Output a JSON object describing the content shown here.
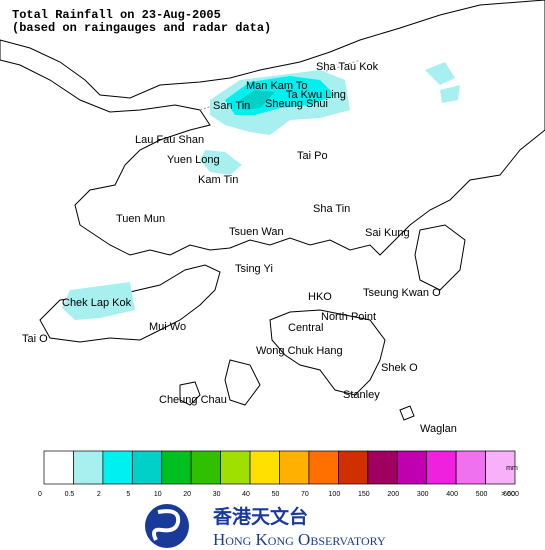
{
  "header": {
    "title": "Total Rainfall on 23-Aug-2005",
    "subtitle": "(based on raingauges and radar data)"
  },
  "places": [
    "Sha Tau Kok",
    "Man Kam To",
    "Ta Kwu Ling",
    "San Tin",
    "Sheung Shui",
    "Lau Fau Shan",
    "Yuen Long",
    "Tai Po",
    "Kam Tin",
    "Sha Tin",
    "Tuen Mun",
    "Tsuen Wan",
    "Sai Kung",
    "Tsing Yi",
    "Tseung Kwan O",
    "HKO",
    "Chek Lap Kok",
    "North Point",
    "Mui Wo",
    "Central",
    "Tai O",
    "Wong Chuk Hang",
    "Shek O",
    "Stanley",
    "Cheung Chau",
    "Waglan"
  ],
  "legend": {
    "unit": "mm",
    "colors": [
      "#ffffff",
      "#a8f0f0",
      "#00f0f0",
      "#00d0c8",
      "#00c020",
      "#30c000",
      "#a0e000",
      "#ffe000",
      "#ffb000",
      "#ff7000",
      "#d03000",
      "#a00060",
      "#c000b0",
      "#f020e0",
      "#f070f0",
      "#f8b0f8"
    ],
    "labels": [
      "0",
      "0.5",
      "2",
      "5",
      "10",
      "20",
      "30",
      "40",
      "50",
      "70",
      "100",
      "150",
      "200",
      "300",
      "400",
      "500",
      "600",
      "> 600"
    ]
  },
  "footer": {
    "chinese": "香港天文台",
    "english": "Hong Kong Observatory"
  }
}
